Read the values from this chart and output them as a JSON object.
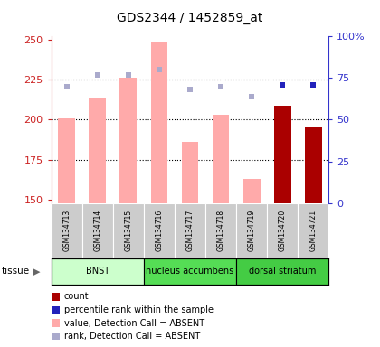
{
  "title": "GDS2344 / 1452859_at",
  "samples": [
    "GSM134713",
    "GSM134714",
    "GSM134715",
    "GSM134716",
    "GSM134717",
    "GSM134718",
    "GSM134719",
    "GSM134720",
    "GSM134721"
  ],
  "tissues": [
    {
      "label": "BNST",
      "start": 0,
      "end": 3,
      "color": "#ccffcc"
    },
    {
      "label": "nucleus accumbens",
      "start": 3,
      "end": 6,
      "color": "#55dd55"
    },
    {
      "label": "dorsal striatum",
      "start": 6,
      "end": 9,
      "color": "#44cc44"
    }
  ],
  "bar_values": [
    201,
    214,
    226,
    248,
    186,
    203,
    163,
    209,
    195
  ],
  "bar_absent": [
    true,
    true,
    true,
    true,
    true,
    true,
    true,
    false,
    false
  ],
  "rank_pct": [
    70,
    77,
    77,
    80,
    68,
    70,
    64,
    71,
    71
  ],
  "rank_absent": [
    true,
    true,
    true,
    true,
    true,
    true,
    true,
    false,
    false
  ],
  "ylim_left": [
    148,
    252
  ],
  "ylim_right": [
    0,
    100
  ],
  "yticks_left": [
    150,
    175,
    200,
    225,
    250
  ],
  "yticks_right": [
    0,
    25,
    50,
    75,
    100
  ],
  "color_bar_absent": "#ffaaaa",
  "color_bar_present": "#aa0000",
  "color_rank_absent": "#aaaacc",
  "color_rank_present": "#2222bb",
  "color_left_axis": "#cc2222",
  "color_right_axis": "#3333cc",
  "legend_items": [
    {
      "color": "#aa0000",
      "label": "count"
    },
    {
      "color": "#2222bb",
      "label": "percentile rank within the sample"
    },
    {
      "color": "#ffaaaa",
      "label": "value, Detection Call = ABSENT"
    },
    {
      "color": "#aaaacc",
      "label": "rank, Detection Call = ABSENT"
    }
  ],
  "bar_width": 0.55,
  "sample_box_color": "#cccccc",
  "grid_color": "black",
  "grid_linestyle": ":",
  "grid_linewidth": 0.8,
  "grid_yvals": [
    175,
    200,
    225
  ]
}
